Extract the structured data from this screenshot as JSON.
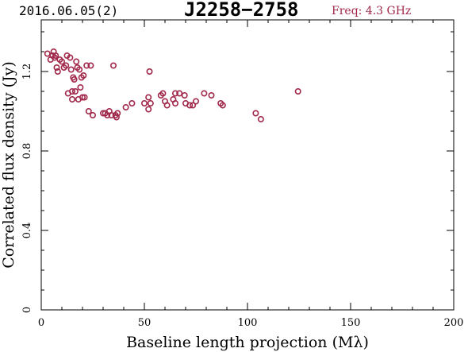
{
  "header": {
    "date_label": "2016.06.05(2)",
    "source_name": "J2258−2758",
    "freq_label": "Freq: 4.3 GHz"
  },
  "colors": {
    "marker": "#a0284a",
    "axis": "#000000"
  },
  "chart_data": {
    "type": "scatter",
    "xlabel": "Baseline length projection (Mλ)",
    "ylabel": "Correlated flux density (Jy)",
    "xlim": [
      0,
      200
    ],
    "ylim": [
      0,
      1.46
    ],
    "xticks": [
      0,
      50,
      100,
      150,
      200
    ],
    "yticks": [
      0,
      0.4,
      0.8,
      1.2
    ],
    "ytick_labels": [
      "0",
      "0.4",
      "0.8",
      "1.2"
    ],
    "minor_x_step": 10,
    "minor_y_step": 0.1,
    "grid": false,
    "legend": "none",
    "marker": "open-circle",
    "points": [
      [
        3,
        1.29
      ],
      [
        4.5,
        1.26
      ],
      [
        5.5,
        1.28
      ],
      [
        6,
        1.3
      ],
      [
        6.5,
        1.27
      ],
      [
        7,
        1.28
      ],
      [
        7.5,
        1.22
      ],
      [
        8,
        1.2
      ],
      [
        9,
        1.26
      ],
      [
        10,
        1.25
      ],
      [
        11,
        1.22
      ],
      [
        12,
        1.23
      ],
      [
        12.5,
        1.28
      ],
      [
        13,
        1.09
      ],
      [
        14,
        1.27
      ],
      [
        14.5,
        1.21
      ],
      [
        15,
        1.1
      ],
      [
        15,
        1.06
      ],
      [
        15.5,
        1.17
      ],
      [
        16,
        1.16
      ],
      [
        16.5,
        1.1
      ],
      [
        17,
        1.25
      ],
      [
        17.5,
        1.22
      ],
      [
        18,
        1.06
      ],
      [
        18.5,
        1.21
      ],
      [
        19,
        1.12
      ],
      [
        19.5,
        1.17
      ],
      [
        20,
        1.07
      ],
      [
        20.5,
        1.18
      ],
      [
        21,
        1.07
      ],
      [
        22,
        1.23
      ],
      [
        23,
        1.0
      ],
      [
        24,
        1.23
      ],
      [
        25,
        0.98
      ],
      [
        30,
        0.99
      ],
      [
        31,
        0.99
      ],
      [
        32,
        0.98
      ],
      [
        33,
        1.0
      ],
      [
        34,
        0.98
      ],
      [
        35,
        1.23
      ],
      [
        36,
        0.98
      ],
      [
        36.5,
        0.97
      ],
      [
        37,
        0.99
      ],
      [
        41,
        1.02
      ],
      [
        44,
        1.04
      ],
      [
        50,
        1.04
      ],
      [
        52,
        1.07
      ],
      [
        52,
        1.01
      ],
      [
        52.5,
        1.2
      ],
      [
        53,
        1.04
      ],
      [
        58,
        1.08
      ],
      [
        59,
        1.09
      ],
      [
        60,
        1.05
      ],
      [
        61,
        1.03
      ],
      [
        64,
        1.06
      ],
      [
        65,
        1.04
      ],
      [
        65,
        1.09
      ],
      [
        67,
        1.09
      ],
      [
        69.5,
        1.08
      ],
      [
        70,
        1.04
      ],
      [
        72,
        1.03
      ],
      [
        73.5,
        1.03
      ],
      [
        75,
        1.05
      ],
      [
        79,
        1.09
      ],
      [
        82.5,
        1.08
      ],
      [
        87,
        1.04
      ],
      [
        88,
        1.03
      ],
      [
        104,
        0.99
      ],
      [
        106.5,
        0.96
      ],
      [
        124.5,
        1.1
      ]
    ]
  }
}
